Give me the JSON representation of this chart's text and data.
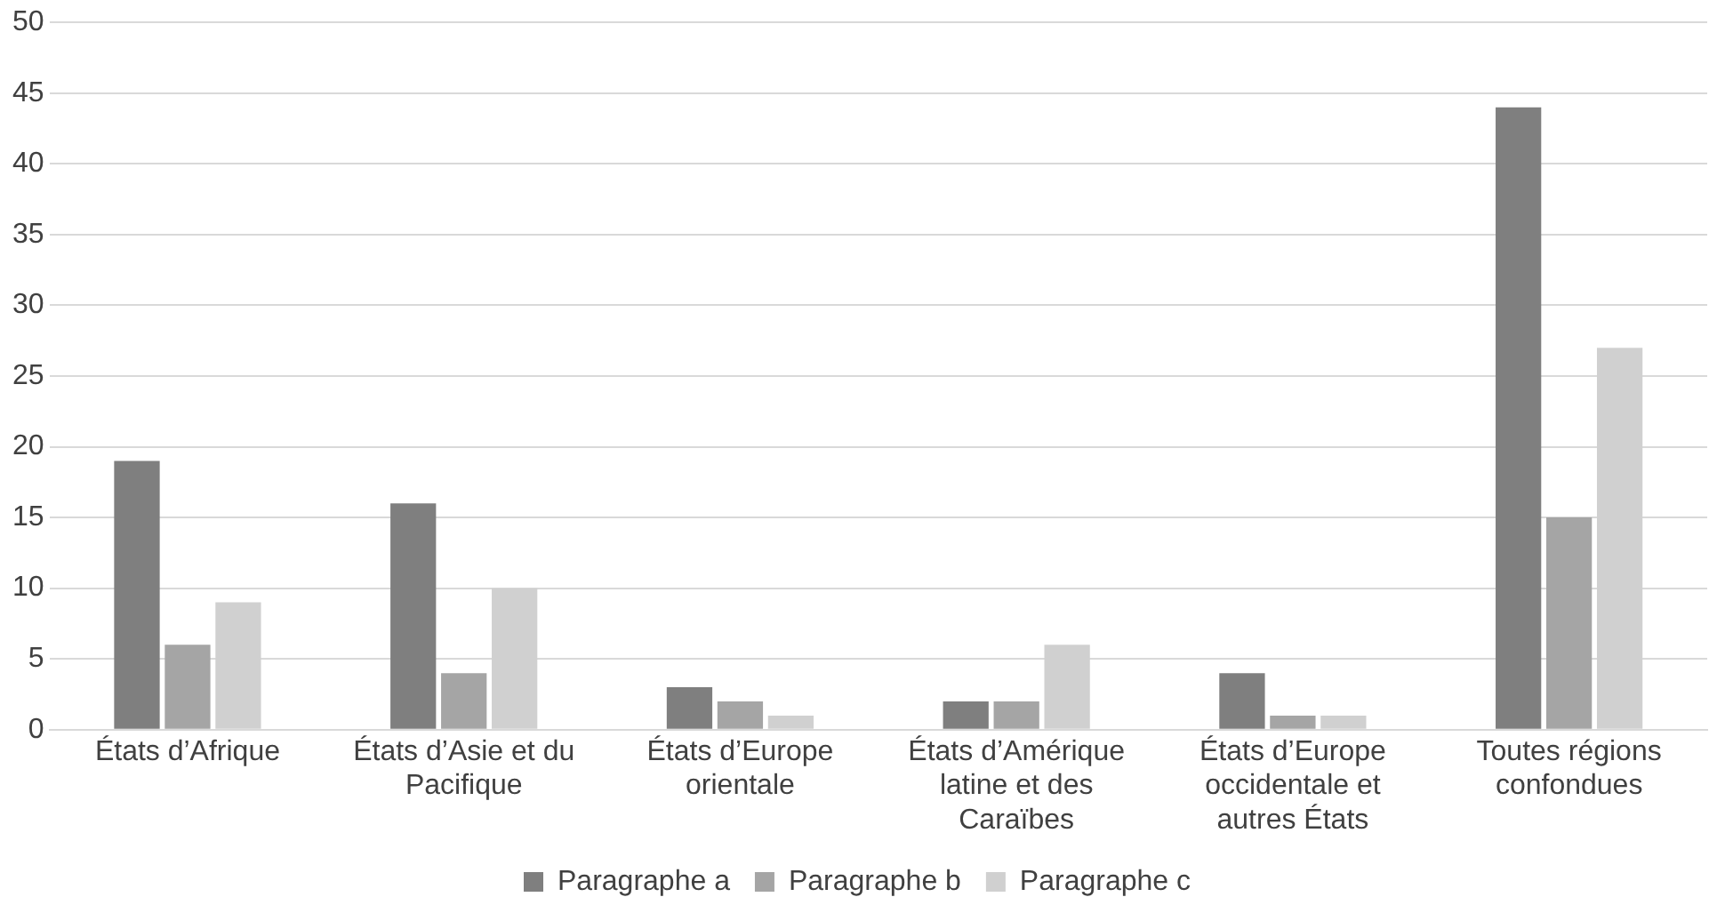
{
  "chart_data": {
    "type": "bar",
    "categories": [
      "États d’Afrique",
      "États d’Asie et du Pacifique",
      "États d’Europe orientale",
      "États d’Amérique latine et des Caraïbes",
      "États d’Europe occidentale et autres États",
      "Toutes régions confondues"
    ],
    "series": [
      {
        "name": "Paragraphe a",
        "color": "#7f7f7f",
        "values": [
          19,
          16,
          3,
          2,
          4,
          44
        ]
      },
      {
        "name": "Paragraphe b",
        "color": "#a5a5a5",
        "values": [
          6,
          4,
          2,
          2,
          1,
          15
        ]
      },
      {
        "name": "Paragraphe c",
        "color": "#d0d0d0",
        "values": [
          9,
          10,
          1,
          6,
          1,
          27
        ]
      }
    ],
    "ylim": [
      0,
      50
    ],
    "yticks": [
      0,
      5,
      10,
      15,
      20,
      25,
      30,
      35,
      40,
      45,
      50
    ],
    "grid": "y",
    "legend": "bottom"
  }
}
